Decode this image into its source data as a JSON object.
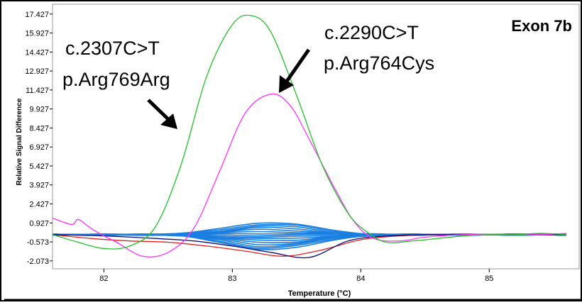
{
  "chart_data": {
    "type": "line",
    "title": "Exon 7b",
    "xlabel": "Temperature (°C)",
    "ylabel": "Relative Signal Difference",
    "xlim": [
      81.6,
      85.7
    ],
    "ylim": [
      -2.7,
      18.2
    ],
    "x_ticks": [
      "82",
      "83",
      "84",
      "85"
    ],
    "y_ticks": [
      "17.427",
      "15.927",
      "14.427",
      "12.927",
      "11.427",
      "9.927",
      "8.427",
      "6.927",
      "5.427",
      "3.927",
      "2.427",
      "0.927",
      "-0.573",
      "-2.073"
    ],
    "annotations": [
      {
        "line1": "c.2307C>T",
        "line2": "p.Arg769Arg",
        "points_to": "green curve"
      },
      {
        "line1": "c.2290C>T",
        "line2": "p.Arg764Cys",
        "points_to": "magenta curve"
      }
    ],
    "series": [
      {
        "color": "#22c02a",
        "x": [
          81.6,
          81.8,
          82.0,
          82.2,
          82.4,
          82.6,
          82.8,
          83.0,
          83.15,
          83.3,
          83.5,
          83.7,
          83.9,
          84.05,
          84.2,
          84.4,
          84.6,
          84.8,
          85.0,
          85.2,
          85.4,
          85.6
        ],
        "y": [
          0.0,
          -0.6,
          -1.1,
          -0.9,
          0.6,
          5.5,
          12.5,
          16.6,
          17.3,
          16.0,
          11.0,
          5.5,
          1.7,
          0.2,
          -0.6,
          -0.5,
          -0.3,
          -0.1,
          0.0,
          0.0,
          0.1,
          0.0
        ]
      },
      {
        "color": "#ff33ff",
        "x": [
          81.6,
          81.75,
          81.8,
          81.9,
          82.0,
          82.1,
          82.3,
          82.5,
          82.7,
          82.9,
          83.1,
          83.3,
          83.45,
          83.6,
          83.8,
          83.95,
          84.1,
          84.3,
          84.5,
          84.8,
          85.1,
          85.4,
          85.6
        ],
        "y": [
          1.3,
          0.8,
          1.2,
          0.5,
          -0.1,
          -0.6,
          -1.7,
          -1.4,
          0.5,
          5.0,
          9.6,
          11.1,
          10.2,
          7.5,
          3.6,
          1.0,
          -0.3,
          -0.5,
          -0.2,
          0.0,
          0.0,
          0.0,
          0.1
        ]
      },
      {
        "color": "#e02020",
        "x": [
          81.6,
          81.9,
          82.2,
          82.5,
          82.8,
          83.1,
          83.4,
          83.7,
          84.0,
          84.3,
          84.6,
          85.0,
          85.3,
          85.6
        ],
        "y": [
          0.0,
          -0.3,
          -0.5,
          -0.6,
          -0.9,
          -1.3,
          -1.7,
          -1.2,
          -0.4,
          -0.1,
          0.0,
          0.0,
          0.0,
          0.0
        ]
      },
      {
        "color": "#0a0a7a",
        "x": [
          81.6,
          82.0,
          82.4,
          82.7,
          83.0,
          83.3,
          83.6,
          83.9,
          84.2,
          84.6,
          85.0,
          85.6
        ],
        "y": [
          0.0,
          -0.1,
          -0.3,
          -0.5,
          -0.9,
          -1.4,
          -1.8,
          -0.5,
          -0.1,
          0.0,
          0.0,
          0.0
        ]
      }
    ],
    "blue_series": {
      "color": "#1a7fe0",
      "x": [
        81.6,
        82.0,
        82.3,
        82.6,
        82.9,
        83.2,
        83.5,
        83.8,
        84.1,
        84.4,
        84.8,
        85.2,
        85.6
      ],
      "amplitudes": [
        1.0,
        0.85,
        0.7,
        0.55,
        0.4,
        0.25,
        0.1,
        -0.05,
        -0.2,
        -0.35,
        -0.5,
        -0.65,
        -0.8,
        -0.95,
        -1.1,
        -1.25
      ]
    }
  }
}
